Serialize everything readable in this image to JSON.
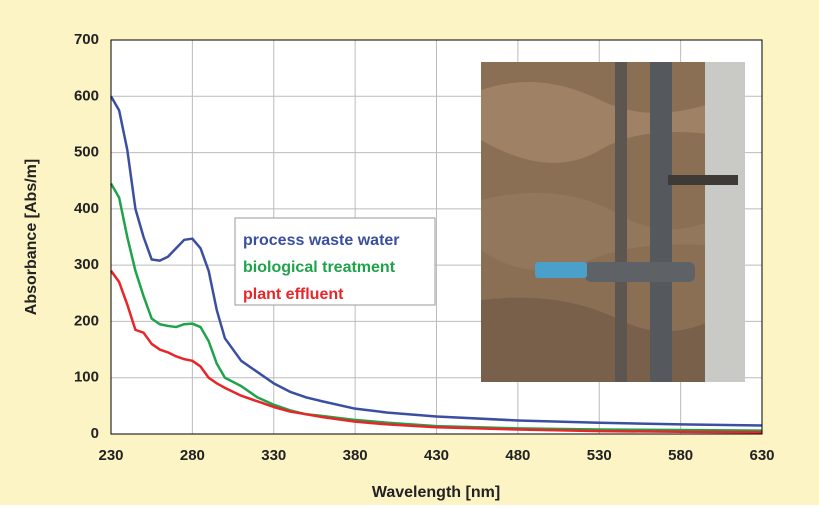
{
  "chart_data": {
    "type": "line",
    "x_label": "Wavelength [nm]",
    "y_label": "Absorbance  [Abs/m]",
    "x": [
      230,
      235,
      240,
      245,
      250,
      255,
      260,
      265,
      270,
      275,
      280,
      285,
      290,
      295,
      300,
      310,
      320,
      330,
      340,
      350,
      360,
      380,
      400,
      430,
      480,
      530,
      580,
      630
    ],
    "series": [
      {
        "name": "process waste water",
        "color": "#3a4fa0",
        "values": [
          600,
          575,
          505,
          400,
          350,
          310,
          308,
          315,
          330,
          345,
          347,
          330,
          290,
          220,
          170,
          130,
          110,
          90,
          75,
          65,
          58,
          45,
          38,
          31,
          24,
          20,
          17,
          15
        ]
      },
      {
        "name": "biological treatment",
        "color": "#1fa34a",
        "values": [
          445,
          420,
          350,
          290,
          245,
          205,
          195,
          192,
          190,
          195,
          196,
          190,
          165,
          125,
          100,
          85,
          65,
          52,
          42,
          35,
          32,
          25,
          20,
          14,
          10,
          8,
          7,
          6
        ]
      },
      {
        "name": "plant effluent",
        "color": "#e8262a",
        "values": [
          290,
          270,
          230,
          185,
          180,
          160,
          150,
          145,
          138,
          133,
          130,
          120,
          100,
          90,
          82,
          68,
          58,
          48,
          40,
          35,
          30,
          22,
          17,
          12,
          8,
          5,
          4,
          3
        ]
      }
    ],
    "xlim": [
      230,
      630
    ],
    "xticks": [
      230,
      280,
      330,
      380,
      430,
      480,
      530,
      580,
      630
    ],
    "ylim": [
      0,
      700
    ],
    "yticks": [
      0,
      100,
      200,
      300,
      400,
      500,
      600,
      700
    ],
    "grid": true
  }
}
